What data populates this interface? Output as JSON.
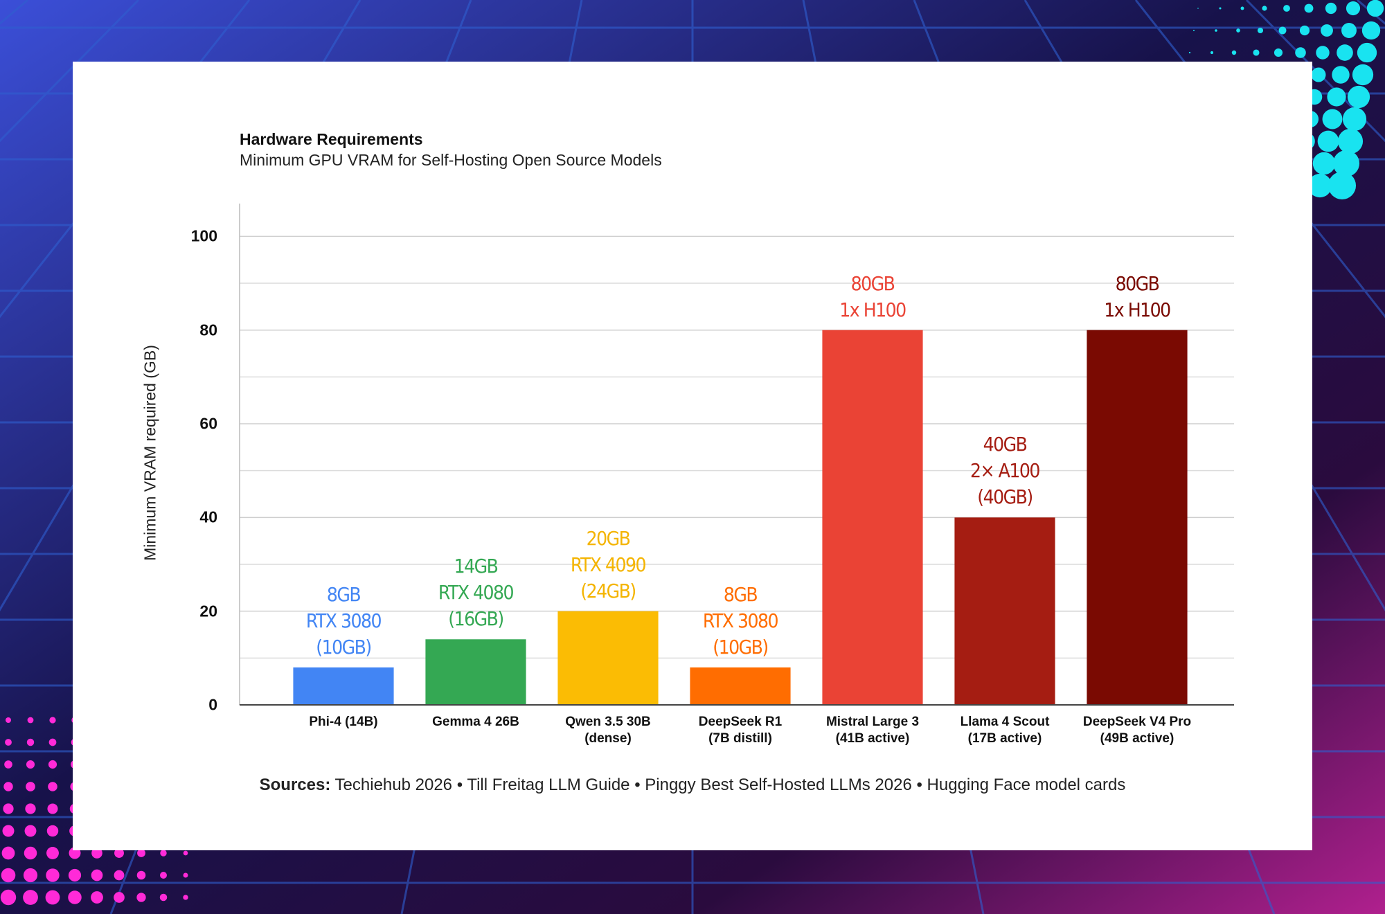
{
  "chart_data": {
    "type": "bar",
    "title": "Hardware Requirements",
    "subtitle": "Minimum GPU VRAM for Self-Hosting Open Source Models",
    "y_label": "Minimum VRAM required (GB)",
    "categories": [
      "Phi-4 (14B)",
      "Gemma 4 26B",
      "Qwen 3.5 30B\n(dense)",
      "DeepSeek R1\n(7B distill)",
      "Mistral Large 3\n(41B active)",
      "Llama 4 Scout\n(17B active)",
      "DeepSeek V4 Pro\n(49B active)"
    ],
    "values": [
      8,
      14,
      20,
      8,
      80,
      40,
      80
    ],
    "value_labels": [
      "8GB\nRTX 3080\n(10GB)",
      "14GB\nRTX 4080\n(16GB)",
      "20GB\nRTX 4090\n(24GB)",
      "8GB\nRTX 3080\n(10GB)",
      "80GB\n1x H100",
      "40GB\n2× A100\n(40GB)",
      "80GB\n1x H100"
    ],
    "colors": [
      "#4285f4",
      "#34a853",
      "#fbbc04",
      "#ff6d01",
      "#ea4335",
      "#a51d12",
      "#7a0a02"
    ],
    "label_colors": [
      "#4285f4",
      "#34a853",
      "#f4b400",
      "#ff6d01",
      "#ea4335",
      "#a51d12",
      "#7a0a02"
    ],
    "ylim": [
      0,
      107
    ],
    "yticks": [
      0,
      20,
      40,
      60,
      80,
      100
    ],
    "minor_grid": [
      10,
      30,
      50,
      70,
      90
    ],
    "grid": true,
    "source_label": "Sources:",
    "source": "Techiehub 2026 • Till Freitag LLM Guide • Pinggy Best Self-Hosted LLMs 2026 • Hugging Face model cards"
  }
}
